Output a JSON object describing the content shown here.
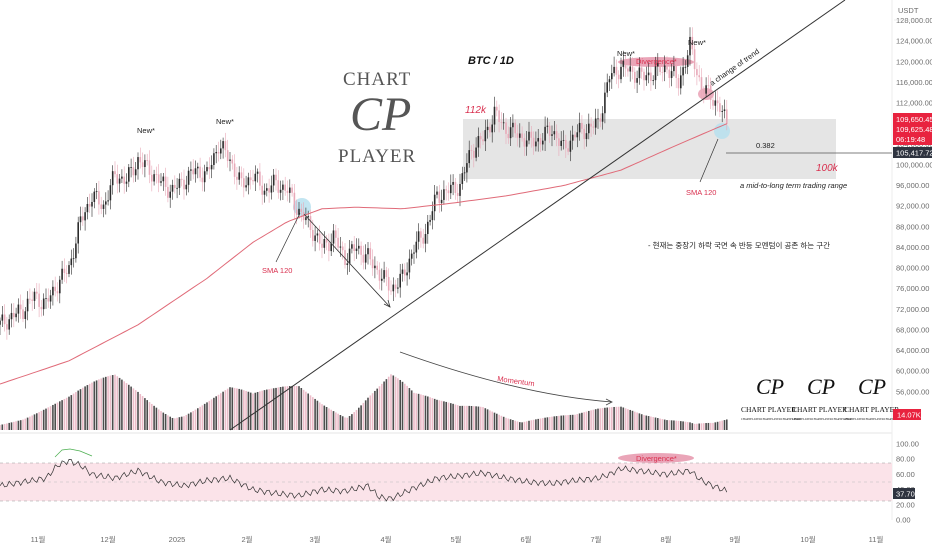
{
  "currency_label": "USDT",
  "chart_data": {
    "type": "candlestick",
    "title": "BTC / 1D",
    "x_ticks": [
      "11월",
      "12월",
      "2025",
      "2월",
      "3월",
      "4월",
      "5월",
      "6월",
      "7월",
      "8월",
      "9월",
      "10월",
      "11월"
    ],
    "price_axis": {
      "ylim": [
        48000,
        132000
      ],
      "ticks": [
        "128,000.00",
        "124,000.00",
        "120,000.00",
        "116,000.00",
        "112,000.00",
        "108,000.00",
        "104,000.00",
        "100,000.00",
        "96,000.00",
        "92,000.00",
        "88,000.00",
        "84,000.00",
        "80,000.00",
        "76,000.00",
        "72,000.00",
        "68,000.00",
        "64,000.00",
        "60,000.00",
        "56,000.00"
      ]
    },
    "price_labels": {
      "last_high": "109,650.45",
      "last_close": "109,625.48",
      "countdown": "06:19:48",
      "marker": "105,417.72"
    },
    "volume_label": "14.07K",
    "rsi": {
      "ticks": [
        "100.00",
        "80.00",
        "60.00",
        "40.00",
        "20.00",
        "0.00"
      ],
      "current": "37.70",
      "upper_band": 70,
      "lower_band": 30
    },
    "price_series": [
      [
        0,
        69000
      ],
      [
        5,
        70500
      ],
      [
        10,
        72000
      ],
      [
        15,
        74500
      ],
      [
        20,
        73000
      ],
      [
        25,
        77000
      ],
      [
        30,
        80000
      ],
      [
        35,
        89000
      ],
      [
        40,
        94000
      ],
      [
        45,
        92000
      ],
      [
        50,
        98000
      ],
      [
        55,
        97000
      ],
      [
        60,
        101000
      ],
      [
        65,
        99000
      ],
      [
        70,
        96500
      ],
      [
        75,
        95000
      ],
      [
        80,
        97000
      ],
      [
        85,
        99000
      ],
      [
        90,
        98000
      ],
      [
        95,
        104000
      ],
      [
        100,
        101000
      ],
      [
        105,
        96000
      ],
      [
        110,
        98000
      ],
      [
        115,
        95000
      ],
      [
        120,
        96500
      ],
      [
        125,
        95000
      ],
      [
        130,
        91000
      ],
      [
        135,
        88000
      ],
      [
        140,
        84000
      ],
      [
        145,
        86000
      ],
      [
        150,
        82000
      ],
      [
        155,
        84000
      ],
      [
        160,
        82000
      ],
      [
        165,
        79000
      ],
      [
        170,
        76000
      ],
      [
        175,
        78000
      ],
      [
        180,
        84000
      ],
      [
        185,
        87000
      ],
      [
        190,
        94000
      ],
      [
        195,
        95000
      ],
      [
        200,
        96000
      ],
      [
        205,
        103000
      ],
      [
        210,
        105000
      ],
      [
        215,
        110000
      ],
      [
        220,
        107000
      ],
      [
        225,
        106000
      ],
      [
        230,
        104500
      ],
      [
        235,
        105000
      ],
      [
        240,
        107000
      ],
      [
        245,
        103000
      ],
      [
        250,
        106000
      ],
      [
        255,
        107000
      ],
      [
        260,
        108000
      ],
      [
        265,
        117000
      ],
      [
        270,
        119000
      ],
      [
        275,
        118000
      ],
      [
        280,
        117000
      ],
      [
        285,
        118000
      ],
      [
        290,
        119000
      ],
      [
        295,
        116000
      ],
      [
        300,
        123000
      ],
      [
        305,
        115000
      ],
      [
        310,
        113000
      ],
      [
        313,
        111000
      ],
      [
        316,
        108000
      ]
    ],
    "sma_series": [
      [
        0,
        57500
      ],
      [
        30,
        62000
      ],
      [
        60,
        69000
      ],
      [
        90,
        78000
      ],
      [
        110,
        85000
      ],
      [
        125,
        89000
      ],
      [
        140,
        91500
      ],
      [
        155,
        91800
      ],
      [
        175,
        91500
      ],
      [
        195,
        92500
      ],
      [
        220,
        94000
      ],
      [
        245,
        96000
      ],
      [
        270,
        99000
      ],
      [
        295,
        104000
      ],
      [
        316,
        108000
      ]
    ],
    "volume_series": [
      [
        0,
        35
      ],
      [
        10,
        40
      ],
      [
        20,
        60
      ],
      [
        30,
        80
      ],
      [
        40,
        110
      ],
      [
        50,
        140
      ],
      [
        60,
        120
      ],
      [
        70,
        90
      ],
      [
        80,
        70
      ],
      [
        90,
        90
      ],
      [
        100,
        110
      ],
      [
        110,
        85
      ],
      [
        120,
        100
      ],
      [
        130,
        120
      ],
      [
        140,
        95
      ],
      [
        150,
        80
      ],
      [
        160,
        130
      ],
      [
        170,
        160
      ],
      [
        180,
        90
      ],
      [
        190,
        70
      ],
      [
        200,
        60
      ],
      [
        210,
        70
      ],
      [
        220,
        55
      ],
      [
        230,
        50
      ],
      [
        240,
        45
      ],
      [
        250,
        40
      ],
      [
        260,
        50
      ],
      [
        270,
        55
      ],
      [
        280,
        40
      ],
      [
        290,
        35
      ],
      [
        300,
        45
      ],
      [
        310,
        30
      ],
      [
        316,
        35
      ]
    ],
    "rsi_series": [
      [
        0,
        45
      ],
      [
        10,
        50
      ],
      [
        20,
        55
      ],
      [
        25,
        72
      ],
      [
        30,
        78
      ],
      [
        35,
        72
      ],
      [
        40,
        60
      ],
      [
        50,
        55
      ],
      [
        60,
        65
      ],
      [
        70,
        50
      ],
      [
        80,
        45
      ],
      [
        90,
        52
      ],
      [
        100,
        55
      ],
      [
        110,
        40
      ],
      [
        120,
        35
      ],
      [
        130,
        32
      ],
      [
        140,
        40
      ],
      [
        150,
        38
      ],
      [
        160,
        45
      ],
      [
        165,
        30
      ],
      [
        170,
        28
      ],
      [
        180,
        42
      ],
      [
        190,
        55
      ],
      [
        200,
        58
      ],
      [
        210,
        62
      ],
      [
        220,
        55
      ],
      [
        230,
        50
      ],
      [
        240,
        48
      ],
      [
        250,
        52
      ],
      [
        260,
        55
      ],
      [
        265,
        60
      ],
      [
        270,
        68
      ],
      [
        280,
        64
      ],
      [
        290,
        60
      ],
      [
        300,
        65
      ],
      [
        305,
        52
      ],
      [
        310,
        45
      ],
      [
        316,
        38
      ]
    ],
    "annotations": {
      "new_high": "New*",
      "divergence": "Divergence*",
      "sma": "SMA 120",
      "momentum": "Momentum",
      "change_of_trend": "a change of trend",
      "range_high": "112k",
      "range_low": "100k",
      "fib": "0.382",
      "range_note": "a mid-to-long term trading range",
      "comment": "- 현재는 중장기 하락 국면 속 반등 모멘텀이 공존 하는 구간"
    }
  },
  "logo": {
    "line1": "CHART",
    "letters": "CP",
    "line2": "PLAYER",
    "small_text": "CHART PLAYER",
    "fine_text": "CHARTPLAYERCHARTPLAYERCHARTPLAYER"
  },
  "colors": {
    "up": "#2b2b2b",
    "down": "#e8a9b8",
    "sma": "#e06a78",
    "range_box": "#dcdcdc",
    "accent_red": "#d9304f",
    "rsi_band": "#fbe3e9",
    "rsi_line": "#333333",
    "highlight": "#b7e0ee"
  }
}
